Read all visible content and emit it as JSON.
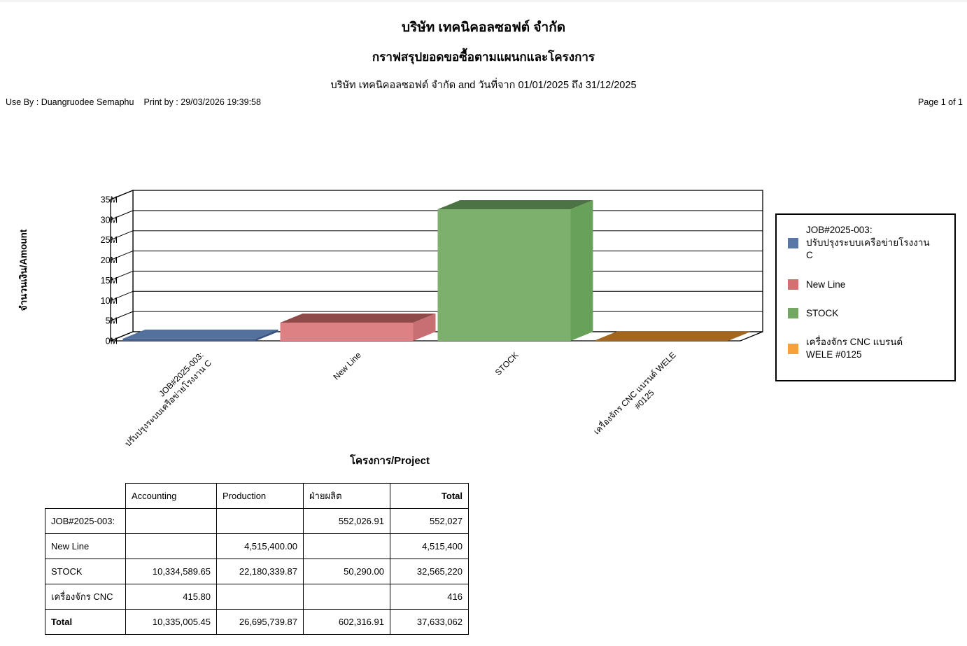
{
  "page": {
    "title": "บริษัท เทคนิคอลซอฟต์ จำกัด",
    "subtitle": "กราฟสรุปยอดขอซื้อตามแผนกและโครงการ",
    "filter_line": "บริษัท เทคนิคอลซอฟต์ จำกัด and   วันที่จาก  01/01/2025 ถึง 31/12/2025",
    "use_by": "Use By : Duangruodee Semaphu",
    "print_by": "Print by : 29/03/2026   19:39:58",
    "page_info": "Page 1 of 1"
  },
  "chart_data": {
    "type": "bar",
    "style": "3d",
    "title": "",
    "xlabel": "โครงการ/Project",
    "ylabel": "จำนวนเงิน/Amount",
    "ylim": [
      0,
      35000000
    ],
    "grid": true,
    "legend_position": "right",
    "y_ticks": [
      "0M",
      "5M",
      "10M",
      "15M",
      "20M",
      "25M",
      "30M",
      "35M"
    ],
    "categories": [
      "JOB#2025-003: ปรับปรุงระบบเครือข่ายโรงงาน C",
      "New Line",
      "STOCK",
      "เครื่องจักร CNC  แบรนด์ WELE #0125"
    ],
    "label_lines": [
      [
        {
          "text": "JOB#2025-003:",
          "dx": 0
        },
        {
          "text": "ปรับปรุงระบบเครือข่ายโรงงาน C",
          "dx": 0
        }
      ],
      [
        {
          "text": "New Line",
          "dx": 0
        }
      ],
      [
        {
          "text": "STOCK",
          "dx": 0
        }
      ],
      [
        {
          "text": "เครื่องจักร CNC  แบรนด์ WELE",
          "dx": 0
        },
        {
          "text": "#0125",
          "dx": -60
        }
      ]
    ],
    "values": [
      552026.91,
      4515400.0,
      32565220,
      415.8
    ],
    "bar_faces": [
      {
        "front": "#47628e",
        "top": "#54709d",
        "side": "#3a5480"
      },
      {
        "front": "#dd8184",
        "top": "#8e4a49",
        "side": "#c76f72"
      },
      {
        "front": "#7cb06c",
        "top": "#4c7343",
        "side": "#68a15a"
      },
      {
        "front": "#9a5f1c",
        "top": "#a4661f",
        "side": "#8a5418"
      }
    ],
    "legend": [
      {
        "label": "JOB#2025-003:\nปรับปรุงระบบเครือข่ายโรงงาน\nC",
        "color": "#5b77a8"
      },
      {
        "label": "New Line",
        "color": "#d4706f"
      },
      {
        "label": "STOCK",
        "color": "#72a862"
      },
      {
        "label": "เครื่องจักร CNC  แบรนด์\nWELE #0125",
        "color": "#f6a13c"
      }
    ]
  },
  "table": {
    "columns": [
      {
        "label": "",
        "align": "left",
        "bold": false
      },
      {
        "label": "Accounting",
        "align": "left",
        "bold": false
      },
      {
        "label": "Production",
        "align": "left",
        "bold": false
      },
      {
        "label": "ฝ่ายผลิต",
        "align": "left",
        "bold": false
      },
      {
        "label": "Total",
        "align": "right",
        "bold": true
      }
    ],
    "rows": [
      {
        "label": "JOB#2025-003:",
        "bold": false,
        "cells": [
          "",
          "",
          "552,026.91",
          "552,027"
        ]
      },
      {
        "label": "New Line",
        "bold": false,
        "cells": [
          "",
          "4,515,400.00",
          "",
          "4,515,400"
        ]
      },
      {
        "label": "STOCK",
        "bold": false,
        "cells": [
          "10,334,589.65",
          "22,180,339.87",
          "50,290.00",
          "32,565,220"
        ]
      },
      {
        "label": "เครื่องจักร CNC",
        "bold": false,
        "cells": [
          "415.80",
          "",
          "",
          "416"
        ]
      },
      {
        "label": "Total",
        "bold": true,
        "cells": [
          "10,335,005.45",
          "26,695,739.87",
          "602,316.91",
          "37,633,062"
        ]
      }
    ]
  }
}
